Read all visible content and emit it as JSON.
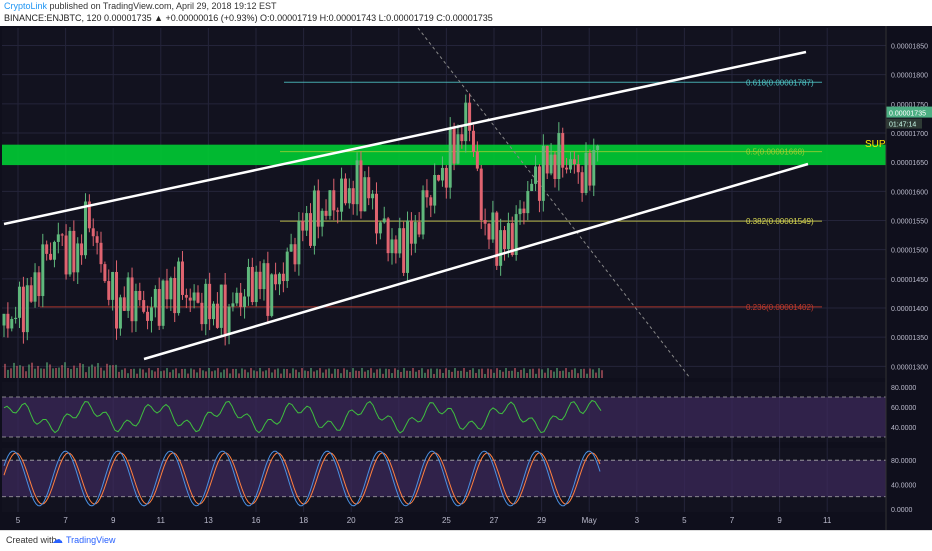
{
  "header": {
    "author": "CryptoLink",
    "published": "published on TradingView.com, April 29, 2018 19:12 EST",
    "ohlc": "BINANCE:ENJBTC, 120  0.00001735 ▲ +0.00000016 (+0.93%) O:0.00001719 H:0.00001743 L:0.00001719 C:0.00001735"
  },
  "footer": {
    "created_with": "Created with",
    "brand": "TradingView"
  },
  "colors": {
    "background": "#12121f",
    "grid": "#24243a",
    "channel": "#ffffff",
    "support_zone": "#00cc33",
    "fib_618": "#4fc3c3",
    "fib_50": "#9acd32",
    "fib_382": "#d4d44f",
    "fib_236": "#c0392b",
    "candle_up": "#5fb87c",
    "candle_down": "#e06470",
    "rsi": "#3fbf3f",
    "stoch_k": "#4a90e2",
    "stoch_d": "#ff7f3f",
    "indicator_band": "#3d2a5c"
  },
  "chart_data": {
    "type": "candlestick",
    "symbol": "BINANCE:ENJBTC",
    "interval": "120",
    "last_price": "0.00001735",
    "countdown": "01:47:14",
    "support_label": "SUP",
    "x_ticks": [
      "5",
      "7",
      "9",
      "11",
      "13",
      "16",
      "18",
      "20",
      "23",
      "25",
      "27",
      "29",
      "May",
      "3",
      "5",
      "7",
      "9",
      "11"
    ],
    "price_ticks": [
      "0.00001850",
      "0.00001800",
      "0.00001750",
      "0.00001700",
      "0.00001650",
      "0.00001600",
      "0.00001550",
      "0.00001500",
      "0.00001450",
      "0.00001400",
      "0.00001350",
      "0.00001300"
    ],
    "ylim": [
      1.28e-05,
      1.88e-05
    ],
    "fib_levels": [
      {
        "label": "0.618(0.00001787)",
        "value": 1.787e-05
      },
      {
        "label": "0.5(0.00001668)",
        "value": 1.668e-05
      },
      {
        "label": "0.382(0.00001549)",
        "value": 1.549e-05
      },
      {
        "label": "0.236(0.00001402)",
        "value": 1.402e-05
      }
    ],
    "support_zone": [
      1.645e-05,
      1.68e-05
    ],
    "channel_upper": {
      "from": {
        "x": "Apr 4",
        "y": 1.558e-05
      },
      "to": {
        "x": "May 9",
        "y": 1.834e-05
      }
    },
    "channel_lower": {
      "from": {
        "x": "Apr 10",
        "y": 1.33e-05
      },
      "to": {
        "x": "May 9",
        "y": 1.648e-05
      }
    },
    "price_path": [
      [
        0,
        1.37e-05
      ],
      [
        14,
        1.42e-05
      ],
      [
        20,
        1.48e-05
      ],
      [
        28,
        1.52e-05
      ],
      [
        36,
        1.48e-05
      ],
      [
        44,
        1.56e-05
      ],
      [
        50,
        1.47e-05
      ],
      [
        58,
        1.4e-05
      ],
      [
        66,
        1.42e-05
      ],
      [
        74,
        1.39e-05
      ],
      [
        82,
        1.42e-05
      ],
      [
        90,
        1.44e-05
      ],
      [
        98,
        1.41e-05
      ],
      [
        106,
        1.4e-05
      ],
      [
        114,
        1.39e-05
      ],
      [
        122,
        1.42e-05
      ],
      [
        130,
        1.45e-05
      ],
      [
        138,
        1.43e-05
      ],
      [
        146,
        1.48e-05
      ],
      [
        154,
        1.54e-05
      ],
      [
        162,
        1.56e-05
      ],
      [
        170,
        1.58e-05
      ],
      [
        178,
        1.6e-05
      ],
      [
        186,
        1.61e-05
      ],
      [
        194,
        1.54e-05
      ],
      [
        202,
        1.5e-05
      ],
      [
        210,
        1.52e-05
      ],
      [
        218,
        1.59e-05
      ],
      [
        226,
        1.63e-05
      ],
      [
        234,
        1.69e-05
      ],
      [
        240,
        1.73e-05
      ],
      [
        246,
        1.56e-05
      ],
      [
        252,
        1.52e-05
      ],
      [
        258,
        1.51e-05
      ],
      [
        264,
        1.54e-05
      ],
      [
        270,
        1.6e-05
      ],
      [
        278,
        1.64e-05
      ],
      [
        286,
        1.66e-05
      ],
      [
        294,
        1.64e-05
      ],
      [
        300,
        1.62e-05
      ],
      [
        304,
        1.66e-05
      ],
      [
        308,
        1.735e-05
      ]
    ],
    "rsi": {
      "ticks": [
        "80.0000",
        "60.0000",
        "40.0000"
      ],
      "ylim": [
        25,
        85
      ],
      "bands": [
        70,
        30
      ],
      "last": 70
    },
    "stoch": {
      "ticks": [
        "80.0000",
        "40.0000",
        "0.0000"
      ],
      "ylim": [
        -5,
        100
      ],
      "bands": [
        80,
        20
      ]
    }
  }
}
